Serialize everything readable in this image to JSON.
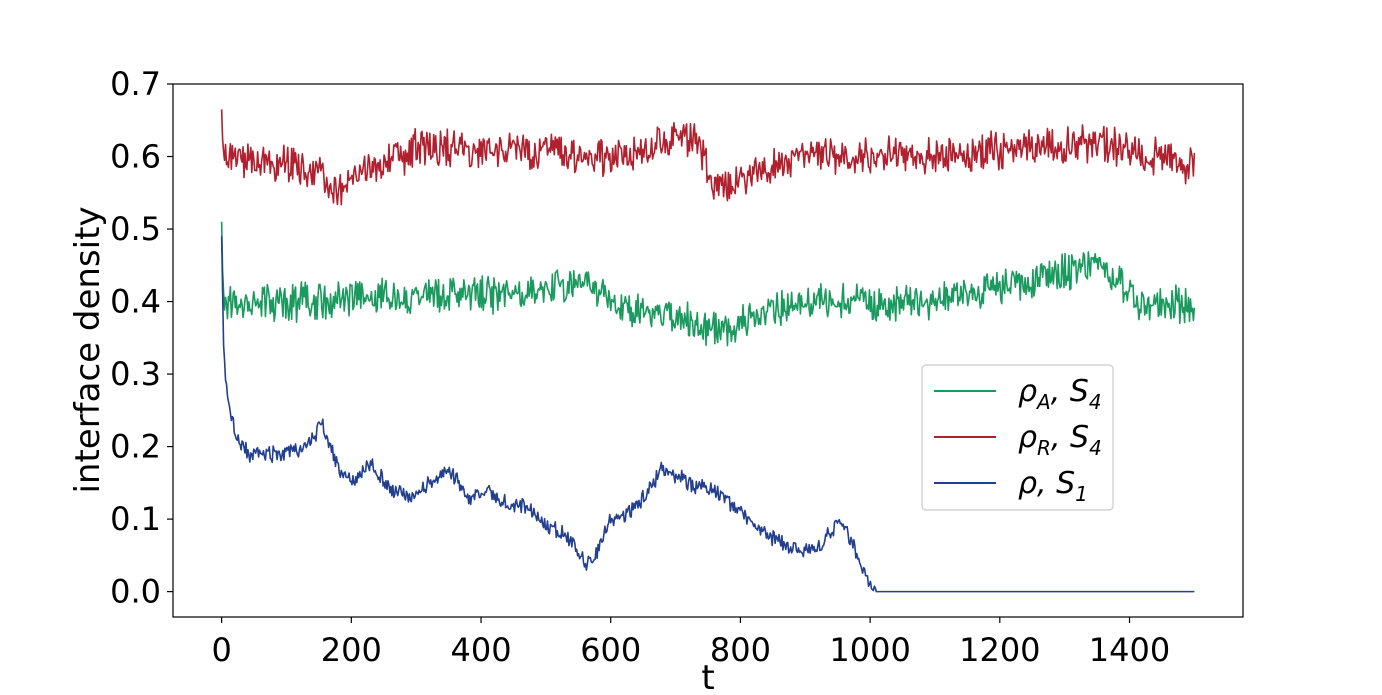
{
  "chart_data": {
    "type": "line",
    "title": "",
    "xlabel": "t",
    "ylabel": "interface density",
    "xlim": [
      -75,
      1575
    ],
    "ylim": [
      -0.035,
      0.7
    ],
    "x_ticks": [
      0,
      200,
      400,
      600,
      800,
      1000,
      1200,
      1400
    ],
    "x_tick_labels": [
      "0",
      "200",
      "400",
      "600",
      "800",
      "1000",
      "1200",
      "1400"
    ],
    "y_ticks": [
      0.0,
      0.1,
      0.2,
      0.3,
      0.4,
      0.5,
      0.6,
      0.7
    ],
    "y_tick_labels": [
      "0.0",
      "0.1",
      "0.2",
      "0.3",
      "0.4",
      "0.5",
      "0.6",
      "0.7"
    ],
    "grid": false,
    "legend_position": "center-right",
    "series": [
      {
        "name": "ρA, S4",
        "legend": {
          "base": "ρ",
          "sub1": "A",
          "mid": ", S",
          "sub2": "4"
        },
        "color": "#1a9a5e",
        "t_end": 1500,
        "start": 0.51,
        "mean": 0.4,
        "noise_amplitude": 0.035,
        "x": [
          0,
          2,
          5,
          50,
          150,
          300,
          450,
          570,
          600,
          760,
          900,
          1100,
          1350,
          1420,
          1500
        ],
        "y": [
          0.51,
          0.42,
          0.4,
          0.4,
          0.4,
          0.41,
          0.41,
          0.43,
          0.4,
          0.36,
          0.4,
          0.4,
          0.45,
          0.4,
          0.39
        ]
      },
      {
        "name": "ρR, S4",
        "legend": {
          "base": "ρ",
          "sub1": "R",
          "mid": ", S",
          "sub2": "4"
        },
        "color": "#b0202e",
        "t_end": 1500,
        "start": 0.665,
        "mean": 0.6,
        "noise_amplitude": 0.035,
        "x": [
          0,
          2,
          5,
          100,
          180,
          300,
          420,
          600,
          730,
          760,
          900,
          1100,
          1350,
          1500
        ],
        "y": [
          0.665,
          0.61,
          0.6,
          0.59,
          0.56,
          0.61,
          0.61,
          0.6,
          0.63,
          0.56,
          0.6,
          0.6,
          0.62,
          0.585
        ]
      },
      {
        "name": "ρ, S1",
        "legend": {
          "base": "ρ",
          "sub1": "",
          "mid": ", S",
          "sub2": "1"
        },
        "color": "#233f8f",
        "t_end": 1500,
        "noise_amplitude": 0.015,
        "x": [
          0,
          3,
          8,
          20,
          40,
          60,
          100,
          130,
          155,
          180,
          200,
          230,
          260,
          290,
          320,
          350,
          380,
          410,
          440,
          470,
          500,
          530,
          560,
          570,
          600,
          630,
          660,
          680,
          700,
          720,
          760,
          800,
          840,
          880,
          920,
          955,
          980,
          1000,
          1010,
          1500
        ],
        "y": [
          0.49,
          0.34,
          0.27,
          0.22,
          0.19,
          0.19,
          0.19,
          0.2,
          0.23,
          0.17,
          0.15,
          0.18,
          0.14,
          0.13,
          0.15,
          0.17,
          0.13,
          0.14,
          0.12,
          0.12,
          0.09,
          0.08,
          0.04,
          0.04,
          0.1,
          0.11,
          0.14,
          0.17,
          0.16,
          0.15,
          0.14,
          0.11,
          0.08,
          0.06,
          0.06,
          0.1,
          0.05,
          0.01,
          0.0,
          0.0
        ]
      }
    ]
  }
}
